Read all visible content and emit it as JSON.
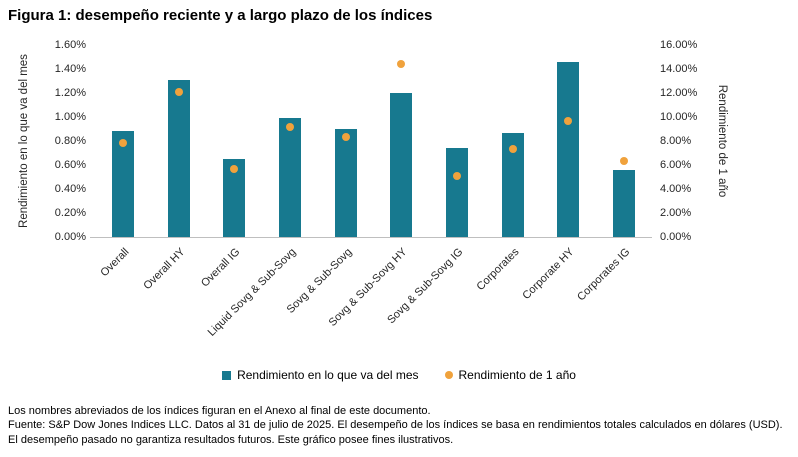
{
  "title": "Figura 1: desempeño reciente y a largo plazo de los índices",
  "chart_data": {
    "type": "bar",
    "categories": [
      "Overall",
      "Overall HY",
      "Overall IG",
      "Liquid Sovg & Sub-Sovg",
      "Sovg & Sub-Sovg",
      "Sovg & Sub-Sovg HY",
      "Sovg & Sub-Sovg IG",
      "Corporates",
      "Corporate HY",
      "Corporates IG"
    ],
    "series": [
      {
        "name": "Rendimiento en lo que va del mes",
        "type": "bar",
        "axis": "left",
        "color": "#17798f",
        "values": [
          0.88,
          1.31,
          0.65,
          0.99,
          0.9,
          1.2,
          0.74,
          0.87,
          1.46,
          0.56
        ]
      },
      {
        "name": "Rendimiento de 1 año",
        "type": "scatter",
        "axis": "right",
        "color": "#f0a23c",
        "values": [
          7.8,
          12.1,
          5.7,
          9.2,
          8.3,
          14.4,
          5.1,
          7.3,
          9.7,
          6.3
        ]
      }
    ],
    "left_axis": {
      "title": "Rendimiento en lo que va del mes",
      "min": 0,
      "max": 1.6,
      "step": 0.2,
      "tick_labels": [
        "0.00%",
        "0.20%",
        "0.40%",
        "0.60%",
        "0.80%",
        "1.00%",
        "1.20%",
        "1.40%",
        "1.60%"
      ]
    },
    "right_axis": {
      "title": "Rendimiento de 1 año",
      "min": 0,
      "max": 16,
      "step": 2,
      "tick_labels": [
        "0.00%",
        "2.00%",
        "4.00%",
        "6.00%",
        "8.00%",
        "10.00%",
        "12.00%",
        "14.00%",
        "16.00%"
      ]
    },
    "grid": false,
    "legend_position": "bottom"
  },
  "footnotes": [
    "Los nombres abreviados de los índices figuran en el Anexo al final de este documento.",
    "Fuente: S&P Dow Jones Indices LLC. Datos al 31 de julio de 2025. El desempeño de los índices se basa en rendimientos totales calculados en dólares (USD). El desempeño pasado no garantiza resultados futuros. Este gráfico posee fines ilustrativos."
  ]
}
